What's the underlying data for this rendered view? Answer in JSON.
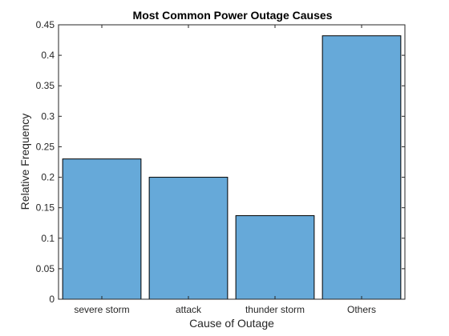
{
  "chart_data": {
    "type": "bar",
    "title": "Most Common Power Outage Causes",
    "xlabel": "Cause of Outage",
    "ylabel": "Relative Frequency",
    "categories": [
      "severe storm",
      "attack",
      "thunder storm",
      "Others"
    ],
    "values": [
      0.23,
      0.2,
      0.137,
      0.432
    ],
    "ylim": [
      0,
      0.45
    ],
    "yticks": [
      0,
      0.05,
      0.1,
      0.15,
      0.2,
      0.25,
      0.3,
      0.35,
      0.4,
      0.45
    ],
    "ytick_labels": [
      "0",
      "0.05",
      "0.1",
      "0.15",
      "0.2",
      "0.25",
      "0.3",
      "0.35",
      "0.4",
      "0.45"
    ],
    "grid": false,
    "colors": {
      "bar_fill": "#66a9d9",
      "bar_edge": "#000000",
      "axis": "#262626"
    }
  }
}
